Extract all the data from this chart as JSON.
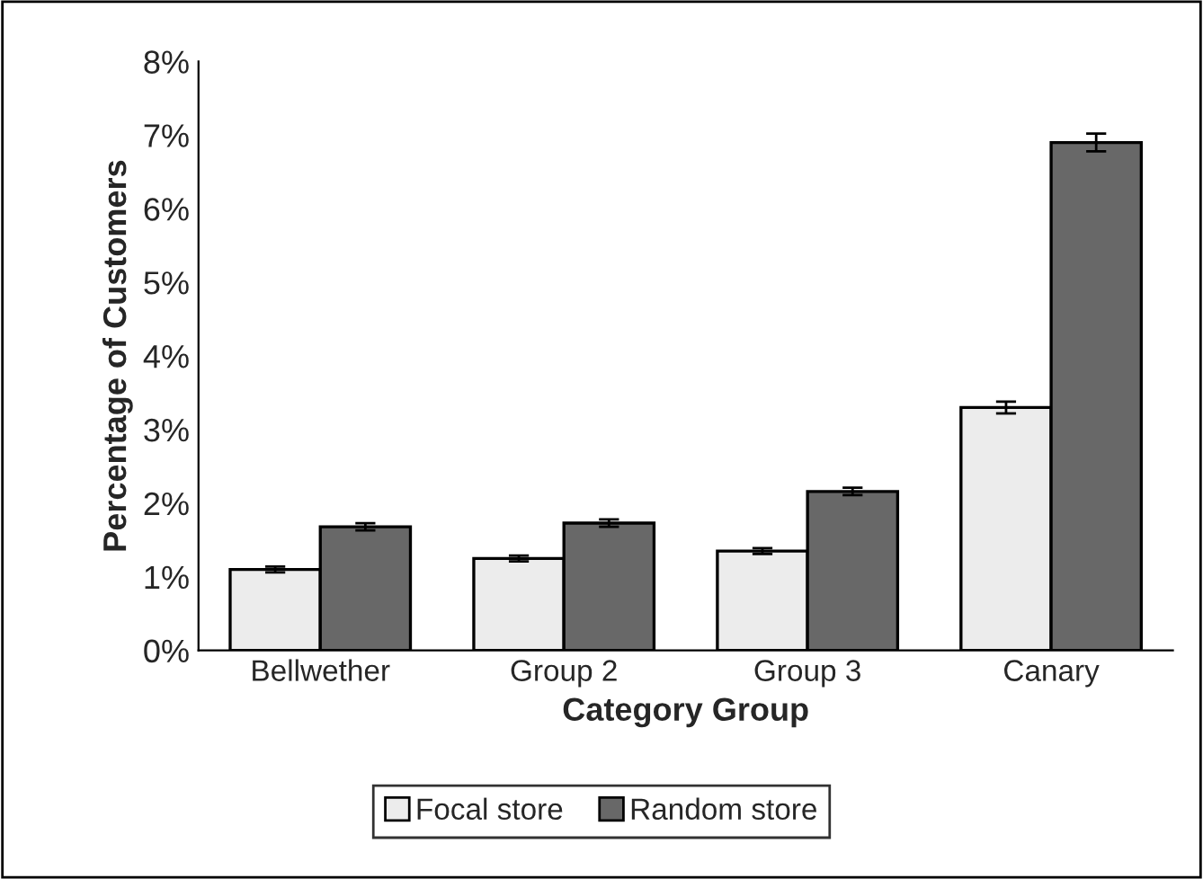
{
  "chart_data": {
    "type": "bar",
    "xlabel": "Category Group",
    "ylabel": "Percentage of Customers",
    "categories": [
      "Bellwether",
      "Group 2",
      "Group 3",
      "Canary"
    ],
    "series": [
      {
        "name": "Focal store",
        "color": "#ececec",
        "values": [
          1.1,
          1.25,
          1.35,
          3.3
        ],
        "errors": [
          0.04,
          0.04,
          0.04,
          0.08
        ]
      },
      {
        "name": "Random store",
        "color": "#686868",
        "values": [
          1.68,
          1.73,
          2.16,
          6.9
        ],
        "errors": [
          0.05,
          0.05,
          0.05,
          0.12
        ]
      }
    ],
    "ylim": [
      0,
      8
    ],
    "yticks": [
      {
        "value": 0,
        "label": "0%"
      },
      {
        "value": 1,
        "label": "1%"
      },
      {
        "value": 2,
        "label": "2%"
      },
      {
        "value": 3,
        "label": "3%"
      },
      {
        "value": 4,
        "label": "4%"
      },
      {
        "value": 5,
        "label": "5%"
      },
      {
        "value": 6,
        "label": "6%"
      },
      {
        "value": 7,
        "label": "7%"
      },
      {
        "value": 8,
        "label": "8%"
      }
    ],
    "grid": false,
    "legend": "bottom"
  }
}
